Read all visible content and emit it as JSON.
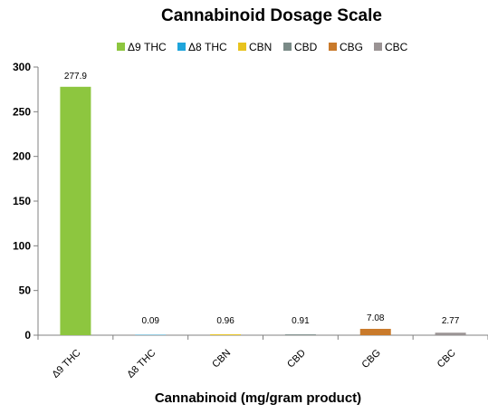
{
  "chart_data": {
    "type": "bar",
    "title": "Cannabinoid Dosage Scale",
    "xlabel": "Cannabinoid (mg/gram product)",
    "ylabel": "",
    "categories": [
      "Δ9 THC",
      "Δ8 THC",
      "CBN",
      "CBD",
      "CBG",
      "CBC"
    ],
    "values": [
      277.9,
      0.09,
      0.96,
      0.91,
      7.08,
      2.77
    ],
    "value_labels": [
      "277.9",
      "0.09",
      "0.96",
      "0.91",
      "7.08",
      "2.77"
    ],
    "colors": [
      "#8DC63F",
      "#1FA5DB",
      "#E8C31E",
      "#7A8A87",
      "#C97A2B",
      "#9A9394"
    ],
    "ylim": [
      0,
      300
    ],
    "yticks": [
      0,
      50,
      100,
      150,
      200,
      250,
      300
    ],
    "grid": false,
    "legend": {
      "position": "top",
      "entries": [
        "Δ9 THC",
        "Δ8 THC",
        "CBN",
        "CBD",
        "CBG",
        "CBC"
      ]
    }
  }
}
